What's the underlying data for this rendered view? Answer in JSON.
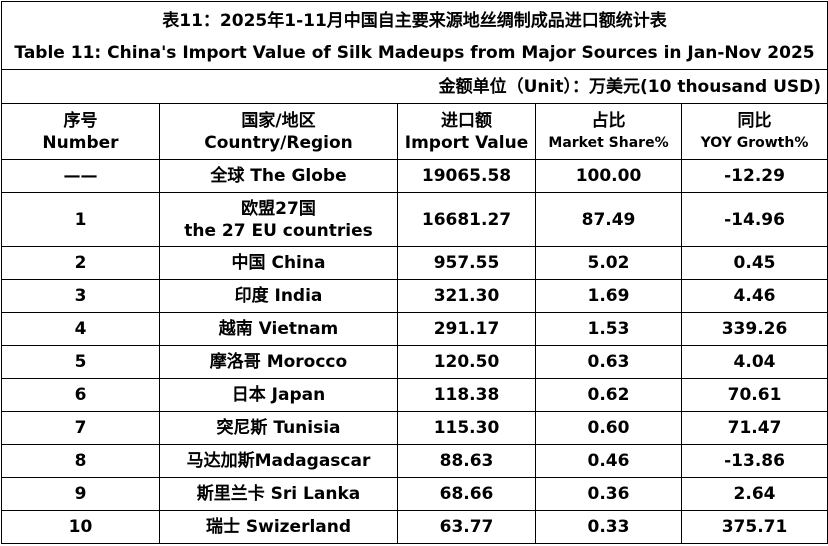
{
  "title": {
    "zh": "表11：2025年1-11月中国自主要来源地丝绸制成品进口额统计表",
    "en": "Table 11: China's Import Value of Silk Madeups from Major Sources in Jan-Nov 2025"
  },
  "unit": "金额单位（Unit）：万美元(10 thousand USD)",
  "header": [
    [
      "序号",
      "Number"
    ],
    [
      "国家/地区",
      "Country/Region"
    ],
    [
      "进口额",
      "Import Value"
    ],
    [
      "占比",
      "Market Share%"
    ],
    [
      "同比",
      "YOY Growth%"
    ]
  ],
  "rows": [
    [
      "——",
      "全球 The Globe",
      "19065.58",
      "100.00",
      "-12.29"
    ],
    [
      "1",
      [
        "欧盟27国",
        "the 27 EU countries"
      ],
      "16681.27",
      "87.49",
      "-14.96"
    ],
    [
      "2",
      "中国 China",
      "957.55",
      "5.02",
      "0.45"
    ],
    [
      "3",
      "印度 India",
      "321.30",
      "1.69",
      "4.46"
    ],
    [
      "4",
      "越南 Vietnam",
      "291.17",
      "1.53",
      "339.26"
    ],
    [
      "5",
      "摩洛哥 Morocco",
      "120.50",
      "0.63",
      "4.04"
    ],
    [
      "6",
      "日本 Japan",
      "118.38",
      "0.62",
      "70.61"
    ],
    [
      "7",
      "突尼斯 Tunisia",
      "115.30",
      "0.60",
      "71.47"
    ],
    [
      "8",
      "马达加斯Madagascar",
      "88.63",
      "0.46",
      "-13.86"
    ],
    [
      "9",
      "斯里兰卡 Sri Lanka",
      "68.66",
      "0.36",
      "2.64"
    ],
    [
      "10",
      "瑞士 Swizerland",
      "63.77",
      "0.33",
      "375.71"
    ]
  ]
}
